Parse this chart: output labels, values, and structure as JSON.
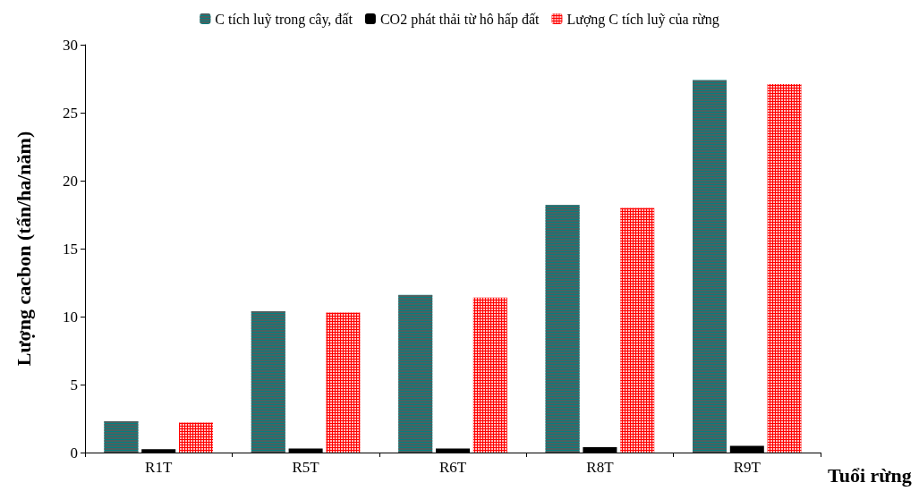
{
  "chart_data": {
    "type": "bar",
    "xlabel": "Tuổi rừng",
    "ylabel": "Lượng cacbon (tấn/ha/năm)",
    "categories": [
      "R1T",
      "R5T",
      "R6T",
      "R8T",
      "R9T"
    ],
    "series": [
      {
        "name": "C tích luỹ trong cây, đất",
        "color": "#008080",
        "values": [
          2.3,
          10.4,
          11.6,
          18.2,
          27.4
        ]
      },
      {
        "name": "CO2 phát thải từ hô hấp đất",
        "color": "#000000",
        "values": [
          0.25,
          0.3,
          0.3,
          0.4,
          0.5
        ]
      },
      {
        "name": "Lượng C tích luỹ của rừng",
        "color": "#ff0000",
        "values": [
          2.2,
          10.3,
          11.4,
          18.0,
          27.1
        ]
      }
    ],
    "ylim": [
      0,
      30
    ],
    "yticks": [
      0,
      5,
      10,
      15,
      20,
      25,
      30
    ],
    "grid": false,
    "legend": "top"
  }
}
